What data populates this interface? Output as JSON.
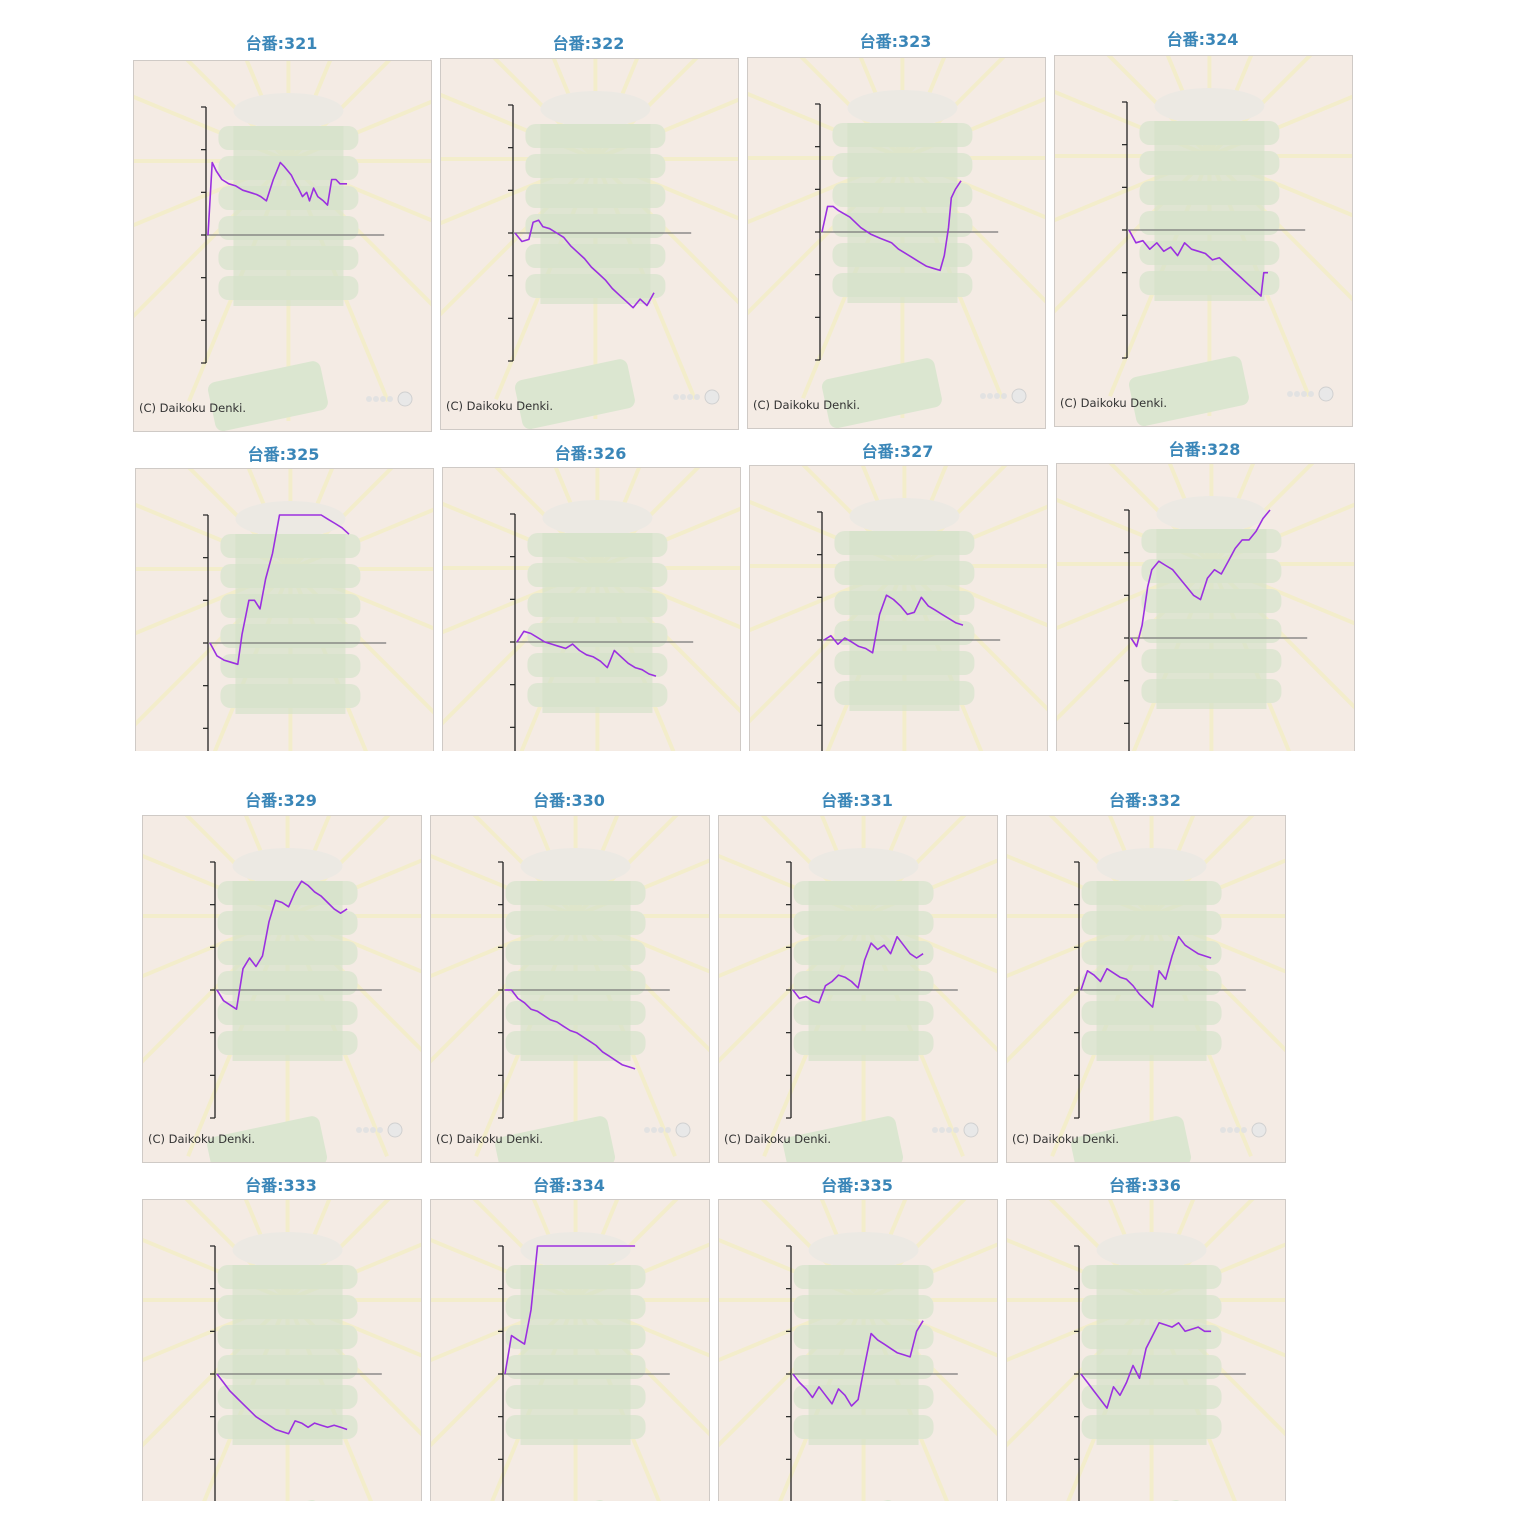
{
  "page": {
    "copyright": "(C) Daikoku Denki.",
    "colors": {
      "title": "#3a86b8",
      "line": "#9b30e0",
      "axis": "#222222",
      "zero_line": "#777777",
      "panel_bg": "#f4ebe4"
    }
  },
  "chart_data": [
    {
      "type": "line",
      "title": "台番:321",
      "ylim": [
        -3,
        3
      ],
      "x": [
        0,
        0.03,
        0.06,
        0.1,
        0.15,
        0.2,
        0.25,
        0.3,
        0.35,
        0.38,
        0.42,
        0.47,
        0.52,
        0.55,
        0.6,
        0.63,
        0.65,
        0.68,
        0.71,
        0.73,
        0.76,
        0.79,
        0.83,
        0.86,
        0.89,
        0.92,
        0.95,
        1.0
      ],
      "y": [
        0,
        1.7,
        1.5,
        1.3,
        1.2,
        1.15,
        1.05,
        1.0,
        0.95,
        0.9,
        0.8,
        1.3,
        1.7,
        1.6,
        1.4,
        1.2,
        1.1,
        0.9,
        1.0,
        0.8,
        1.1,
        0.9,
        0.8,
        0.7,
        1.3,
        1.3,
        1.2,
        1.2
      ]
    },
    {
      "type": "line",
      "title": "台番:322",
      "ylim": [
        -3,
        3
      ],
      "x": [
        0,
        0.05,
        0.1,
        0.13,
        0.17,
        0.2,
        0.25,
        0.3,
        0.35,
        0.4,
        0.45,
        0.5,
        0.55,
        0.6,
        0.65,
        0.7,
        0.75,
        0.8,
        0.85,
        0.9,
        0.95,
        1.0
      ],
      "y": [
        0,
        -0.2,
        -0.15,
        0.25,
        0.3,
        0.15,
        0.1,
        0.0,
        -0.1,
        -0.3,
        -0.45,
        -0.6,
        -0.8,
        -0.95,
        -1.1,
        -1.3,
        -1.45,
        -1.6,
        -1.75,
        -1.55,
        -1.7,
        -1.4
      ]
    },
    {
      "type": "line",
      "title": "台番:323",
      "ylim": [
        -3,
        3
      ],
      "x": [
        0,
        0.04,
        0.08,
        0.12,
        0.2,
        0.28,
        0.35,
        0.42,
        0.5,
        0.55,
        0.6,
        0.65,
        0.7,
        0.75,
        0.8,
        0.85,
        0.88,
        0.91,
        0.93,
        0.96,
        0.98,
        1.0
      ],
      "y": [
        0,
        0.6,
        0.6,
        0.5,
        0.35,
        0.1,
        -0.05,
        -0.15,
        -0.25,
        -0.4,
        -0.5,
        -0.6,
        -0.7,
        -0.8,
        -0.85,
        -0.9,
        -0.55,
        0.1,
        0.8,
        1.0,
        1.1,
        1.2
      ]
    },
    {
      "type": "line",
      "title": "台番:324",
      "ylim": [
        -3,
        3
      ],
      "x": [
        0,
        0.05,
        0.1,
        0.15,
        0.2,
        0.25,
        0.3,
        0.35,
        0.4,
        0.45,
        0.5,
        0.55,
        0.6,
        0.65,
        0.7,
        0.75,
        0.8,
        0.85,
        0.9,
        0.95,
        0.97,
        1.0
      ],
      "y": [
        0,
        -0.3,
        -0.25,
        -0.45,
        -0.3,
        -0.5,
        -0.4,
        -0.6,
        -0.3,
        -0.45,
        -0.5,
        -0.55,
        -0.7,
        -0.65,
        -0.8,
        -0.95,
        -1.1,
        -1.25,
        -1.4,
        -1.55,
        -1.0,
        -1.0
      ]
    },
    {
      "type": "line",
      "title": "台番:325",
      "ylim": [
        -3,
        3
      ],
      "x": [
        0,
        0.05,
        0.1,
        0.15,
        0.2,
        0.23,
        0.28,
        0.32,
        0.36,
        0.4,
        0.45,
        0.5,
        0.55,
        0.6,
        0.65,
        0.7,
        0.75,
        0.8,
        0.85,
        0.9,
        0.95,
        1.0
      ],
      "y": [
        0,
        -0.3,
        -0.4,
        -0.45,
        -0.5,
        0.2,
        1.0,
        1.0,
        0.8,
        1.5,
        2.1,
        3.0,
        3.0,
        3.0,
        3.0,
        3.0,
        3.0,
        3.0,
        2.9,
        2.8,
        2.7,
        2.55
      ]
    },
    {
      "type": "line",
      "title": "台番:326",
      "ylim": [
        -3,
        3
      ],
      "x": [
        0,
        0.05,
        0.1,
        0.15,
        0.2,
        0.25,
        0.3,
        0.35,
        0.4,
        0.45,
        0.5,
        0.55,
        0.6,
        0.65,
        0.7,
        0.75,
        0.8,
        0.85,
        0.9,
        0.95,
        1.0
      ],
      "y": [
        0,
        0.25,
        0.2,
        0.1,
        0.0,
        -0.05,
        -0.1,
        -0.15,
        -0.05,
        -0.2,
        -0.3,
        -0.35,
        -0.45,
        -0.6,
        -0.2,
        -0.35,
        -0.5,
        -0.6,
        -0.65,
        -0.75,
        -0.8
      ]
    },
    {
      "type": "line",
      "title": "台番:327",
      "ylim": [
        -3,
        3
      ],
      "x": [
        0,
        0.05,
        0.1,
        0.15,
        0.2,
        0.25,
        0.3,
        0.35,
        0.4,
        0.45,
        0.5,
        0.55,
        0.6,
        0.65,
        0.7,
        0.75,
        0.8,
        0.85,
        0.9,
        0.95,
        1.0
      ],
      "y": [
        0,
        0.1,
        -0.1,
        0.05,
        -0.05,
        -0.15,
        -0.2,
        -0.3,
        0.6,
        1.05,
        0.95,
        0.8,
        0.6,
        0.65,
        1.0,
        0.8,
        0.7,
        0.6,
        0.5,
        0.4,
        0.35
      ]
    },
    {
      "type": "line",
      "title": "台番:328",
      "ylim": [
        -3,
        3
      ],
      "x": [
        0,
        0.04,
        0.08,
        0.12,
        0.15,
        0.2,
        0.25,
        0.3,
        0.35,
        0.4,
        0.45,
        0.5,
        0.55,
        0.6,
        0.65,
        0.7,
        0.75,
        0.8,
        0.85,
        0.9,
        0.95,
        1.0
      ],
      "y": [
        0,
        -0.2,
        0.3,
        1.2,
        1.6,
        1.8,
        1.7,
        1.6,
        1.4,
        1.2,
        1.0,
        0.9,
        1.4,
        1.6,
        1.5,
        1.8,
        2.1,
        2.3,
        2.3,
        2.5,
        2.8,
        3.0
      ]
    },
    {
      "type": "line",
      "title": "台番:329",
      "ylim": [
        -3,
        3
      ],
      "x": [
        0,
        0.05,
        0.1,
        0.15,
        0.2,
        0.25,
        0.3,
        0.35,
        0.4,
        0.45,
        0.5,
        0.55,
        0.6,
        0.65,
        0.7,
        0.75,
        0.8,
        0.85,
        0.9,
        0.95,
        1.0
      ],
      "y": [
        0,
        -0.25,
        -0.35,
        -0.45,
        0.5,
        0.75,
        0.55,
        0.8,
        1.6,
        2.1,
        2.05,
        1.95,
        2.3,
        2.55,
        2.45,
        2.3,
        2.2,
        2.05,
        1.9,
        1.8,
        1.9
      ]
    },
    {
      "type": "line",
      "title": "台番:330",
      "ylim": [
        -3,
        3
      ],
      "x": [
        0,
        0.05,
        0.1,
        0.15,
        0.2,
        0.25,
        0.3,
        0.35,
        0.4,
        0.45,
        0.5,
        0.55,
        0.6,
        0.65,
        0.7,
        0.75,
        0.8,
        0.85,
        0.9,
        0.95,
        1.0
      ],
      "y": [
        0,
        0.0,
        -0.2,
        -0.3,
        -0.45,
        -0.5,
        -0.6,
        -0.7,
        -0.75,
        -0.85,
        -0.95,
        -1.0,
        -1.1,
        -1.2,
        -1.3,
        -1.45,
        -1.55,
        -1.65,
        -1.75,
        -1.8,
        -1.85
      ]
    },
    {
      "type": "line",
      "title": "台番:331",
      "ylim": [
        -3,
        3
      ],
      "x": [
        0,
        0.05,
        0.1,
        0.15,
        0.2,
        0.25,
        0.3,
        0.35,
        0.4,
        0.45,
        0.5,
        0.55,
        0.6,
        0.65,
        0.7,
        0.75,
        0.8,
        0.85,
        0.9,
        0.95,
        1.0
      ],
      "y": [
        0,
        -0.2,
        -0.15,
        -0.25,
        -0.3,
        0.1,
        0.2,
        0.35,
        0.3,
        0.2,
        0.05,
        0.7,
        1.1,
        0.95,
        1.05,
        0.85,
        1.25,
        1.05,
        0.85,
        0.75,
        0.85
      ]
    },
    {
      "type": "line",
      "title": "台番:332",
      "ylim": [
        -3,
        3
      ],
      "x": [
        0,
        0.05,
        0.1,
        0.15,
        0.2,
        0.25,
        0.3,
        0.35,
        0.4,
        0.45,
        0.5,
        0.55,
        0.6,
        0.65,
        0.7,
        0.75,
        0.8,
        0.85,
        0.9,
        0.95,
        1.0
      ],
      "y": [
        0,
        0.45,
        0.35,
        0.2,
        0.5,
        0.4,
        0.3,
        0.25,
        0.1,
        -0.1,
        -0.25,
        -0.4,
        0.45,
        0.25,
        0.8,
        1.25,
        1.05,
        0.95,
        0.85,
        0.8,
        0.75
      ]
    },
    {
      "type": "line",
      "title": "台番:333",
      "ylim": [
        -3,
        3
      ],
      "x": [
        0,
        0.05,
        0.1,
        0.15,
        0.2,
        0.25,
        0.3,
        0.35,
        0.4,
        0.45,
        0.5,
        0.55,
        0.6,
        0.65,
        0.7,
        0.75,
        0.8,
        0.85,
        0.9,
        0.95,
        1.0
      ],
      "y": [
        0,
        -0.2,
        -0.4,
        -0.55,
        -0.7,
        -0.85,
        -1.0,
        -1.1,
        -1.2,
        -1.3,
        -1.35,
        -1.4,
        -1.1,
        -1.15,
        -1.25,
        -1.15,
        -1.2,
        -1.25,
        -1.2,
        -1.25,
        -1.3
      ]
    },
    {
      "type": "line",
      "title": "台番:334",
      "ylim": [
        -3,
        3
      ],
      "x": [
        0,
        0.05,
        0.1,
        0.15,
        0.2,
        0.25,
        0.3,
        0.35,
        0.4,
        0.45,
        0.5,
        0.55,
        0.6,
        0.65,
        0.7,
        0.75,
        0.8,
        0.85,
        0.9,
        0.95,
        1.0
      ],
      "y": [
        0,
        0.9,
        0.8,
        0.7,
        1.5,
        3.0,
        3.0,
        3.0,
        3.0,
        3.0,
        3.0,
        3.0,
        3.0,
        3.0,
        3.0,
        3.0,
        3.0,
        3.0,
        3.0,
        3.0,
        3.0
      ]
    },
    {
      "type": "line",
      "title": "台番:335",
      "ylim": [
        -3,
        3
      ],
      "x": [
        0,
        0.05,
        0.1,
        0.15,
        0.2,
        0.25,
        0.3,
        0.35,
        0.4,
        0.45,
        0.5,
        0.55,
        0.6,
        0.65,
        0.7,
        0.75,
        0.8,
        0.85,
        0.9,
        0.95,
        1.0
      ],
      "y": [
        0,
        -0.2,
        -0.35,
        -0.55,
        -0.3,
        -0.5,
        -0.7,
        -0.35,
        -0.5,
        -0.75,
        -0.6,
        0.2,
        0.95,
        0.8,
        0.7,
        0.6,
        0.5,
        0.45,
        0.4,
        1.0,
        1.25
      ]
    },
    {
      "type": "line",
      "title": "台番:336",
      "ylim": [
        -3,
        3
      ],
      "x": [
        0,
        0.05,
        0.1,
        0.15,
        0.2,
        0.25,
        0.3,
        0.35,
        0.4,
        0.45,
        0.5,
        0.55,
        0.6,
        0.65,
        0.7,
        0.75,
        0.8,
        0.85,
        0.9,
        0.95,
        1.0
      ],
      "y": [
        0,
        -0.2,
        -0.4,
        -0.6,
        -0.8,
        -0.3,
        -0.5,
        -0.2,
        0.2,
        -0.1,
        0.6,
        0.9,
        1.2,
        1.15,
        1.1,
        1.2,
        1.0,
        1.05,
        1.1,
        1.0,
        1.0
      ]
    }
  ]
}
